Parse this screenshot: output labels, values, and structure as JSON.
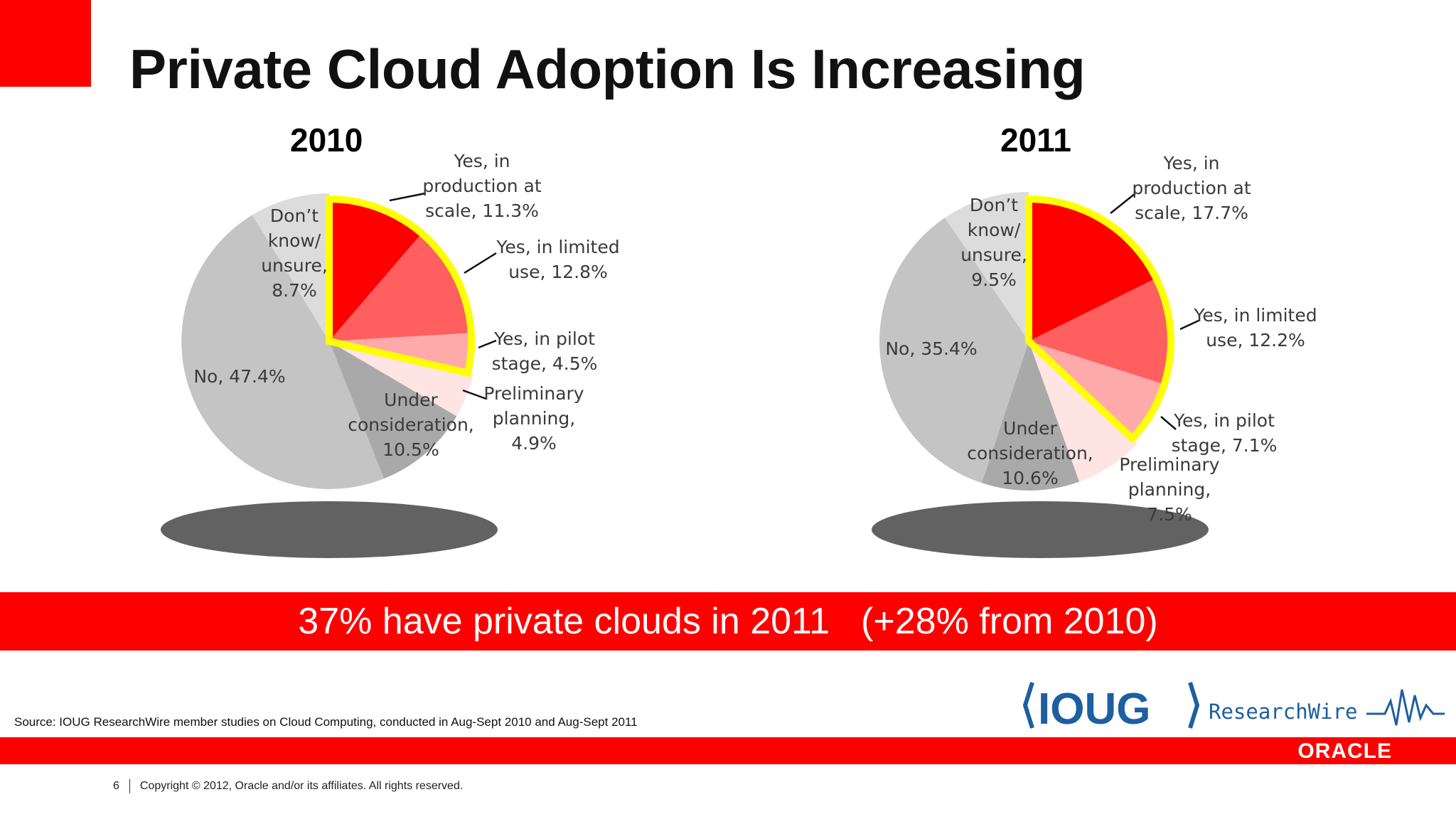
{
  "slide": {
    "title": "Private Cloud Adoption Is Increasing",
    "banner_main": "37% have private clouds in 2011",
    "banner_change": "(+28% from 2010)",
    "source": "Source: IOUG ResearchWire member studies on Cloud Computing, conducted in Aug-Sept 2010 and Aug-Sept 2011",
    "page_number": "6",
    "copyright": "Copyright © 2012, Oracle and/or its affiliates. All rights reserved.",
    "logo_ioug": "IOUG",
    "logo_researchwire": "ResearchWire",
    "logo_oracle": "ORACLE",
    "colors": {
      "accent_red": "#ff0000",
      "highlight_yellow": "#ffff00",
      "shadow_gray": "#626262"
    }
  },
  "chart_data": [
    {
      "type": "pie",
      "title": "2010",
      "slices": [
        {
          "label": "Yes, in production at scale, 11.3%",
          "value": 11.3,
          "color": "#ff0000",
          "highlighted": true
        },
        {
          "label": "Yes, in limited use, 12.8%",
          "value": 12.8,
          "color": "#ff5f5f",
          "highlighted": true
        },
        {
          "label": "Yes, in pilot stage, 4.5%",
          "value": 4.5,
          "color": "#ffaaaa",
          "highlighted": true
        },
        {
          "label": "Preliminary planning, 4.9%",
          "value": 4.9,
          "color": "#ffe4e4",
          "highlighted": false
        },
        {
          "label": "Under consideration, 10.5%",
          "value": 10.5,
          "color": "#a9a9a9",
          "highlighted": false
        },
        {
          "label": "No, 47.4%",
          "value": 47.4,
          "color": "#c4c4c4",
          "highlighted": false
        },
        {
          "label": "Don’t know/ unsure, 8.7%",
          "value": 8.7,
          "color": "#dcdcdc",
          "highlighted": false
        }
      ]
    },
    {
      "type": "pie",
      "title": "2011",
      "slices": [
        {
          "label": "Yes, in production at scale, 17.7%",
          "value": 17.7,
          "color": "#ff0000",
          "highlighted": true
        },
        {
          "label": "Yes, in limited use, 12.2%",
          "value": 12.2,
          "color": "#ff5f5f",
          "highlighted": true
        },
        {
          "label": "Yes, in pilot stage, 7.1%",
          "value": 7.1,
          "color": "#ffaaaa",
          "highlighted": true
        },
        {
          "label": "Preliminary planning, 7.5%",
          "value": 7.5,
          "color": "#ffe4e4",
          "highlighted": false
        },
        {
          "label": "Under consideration, 10.6%",
          "value": 10.6,
          "color": "#a9a9a9",
          "highlighted": false
        },
        {
          "label": "No, 35.4%",
          "value": 35.4,
          "color": "#c4c4c4",
          "highlighted": false
        },
        {
          "label": "Don’t know/ unsure, 9.5%",
          "value": 9.5,
          "color": "#dcdcdc",
          "highlighted": false
        }
      ]
    }
  ]
}
